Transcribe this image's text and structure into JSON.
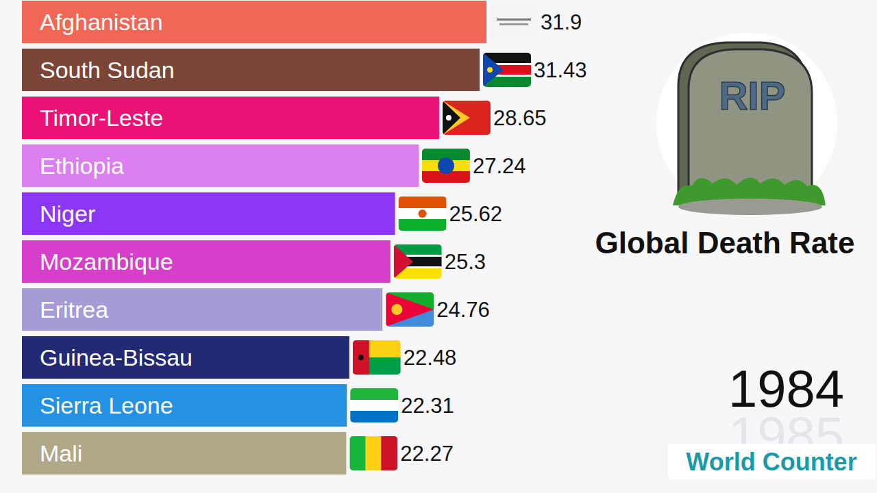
{
  "chart_data": {
    "type": "bar",
    "orientation": "horizontal",
    "title": "Global Death Rate",
    "categories": [
      "Afghanistan",
      "South Sudan",
      "Timor-Leste",
      "Ethiopia",
      "Niger",
      "Mozambique",
      "Eritrea",
      "Guinea-Bissau",
      "Sierra Leone",
      "Mali"
    ],
    "values": [
      31.9,
      31.43,
      28.65,
      27.24,
      25.62,
      25.3,
      24.76,
      22.48,
      22.31,
      22.27
    ],
    "colors": [
      "#f06855",
      "#7b4638",
      "#ec1175",
      "#dc80f0",
      "#8c37f5",
      "#d63fc9",
      "#a59bd6",
      "#232a75",
      "#2591e3",
      "#b0a887"
    ],
    "data_labels": true,
    "annotations": [
      "1984",
      "1985",
      "World Counter",
      "RIP"
    ]
  }
}
